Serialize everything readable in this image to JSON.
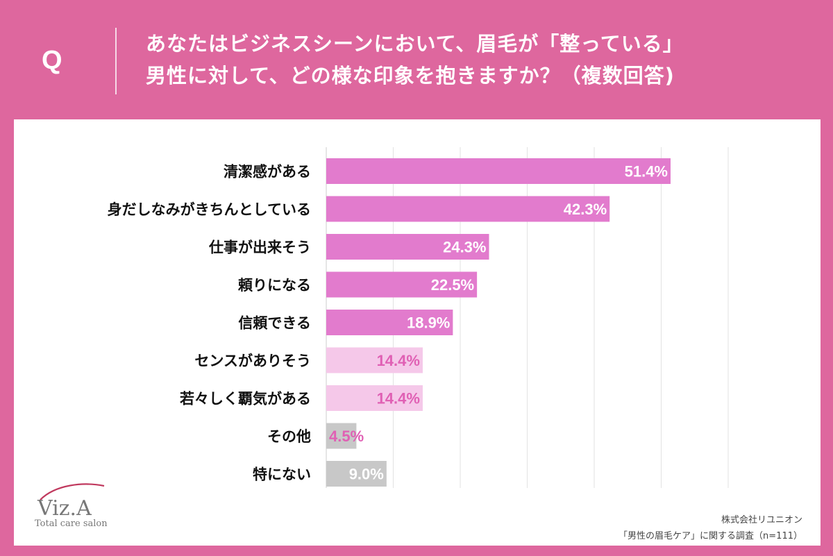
{
  "question": {
    "label": "Q",
    "line1": "あなたはビジネスシーンにおいて、眉毛が「整っている」",
    "line2": "男性に対して、どの様な印象を抱きますか？（複数回答)"
  },
  "chart_data": {
    "type": "bar",
    "orientation": "horizontal",
    "categories": [
      "清潔感がある",
      "身だしなみがきちんとしている",
      "仕事が出来そう",
      "頼りになる",
      "信頼できる",
      "センスがありそう",
      "若々しく覇気がある",
      "その他",
      "特にない"
    ],
    "values": [
      51.4,
      42.3,
      24.3,
      22.5,
      18.9,
      14.4,
      14.4,
      4.5,
      9.0
    ],
    "value_labels": [
      "51.4%",
      "42.3%",
      "24.3%",
      "22.5%",
      "18.9%",
      "14.4%",
      "14.4%",
      "4.5%",
      "9.0%"
    ],
    "xlim": [
      0,
      60
    ],
    "grid": true,
    "bar_colors": [
      "#e27bcd",
      "#e27bcd",
      "#e27bcd",
      "#e27bcd",
      "#e27bcd",
      "#f5c8e9",
      "#f5c8e9",
      "#c8c8c8",
      "#c8c8c8"
    ],
    "label_colors": [
      "#ffffff",
      "#ffffff",
      "#ffffff",
      "#ffffff",
      "#ffffff",
      "#e060b4",
      "#e060b4",
      "#e060b4",
      "#ffffff"
    ]
  },
  "footer": {
    "company": "株式会社リユニオン",
    "survey": "「男性の眉毛ケア」に関する調査（n=111）"
  },
  "logo": {
    "name": "Viz.A",
    "tagline": "Total care salon"
  },
  "colors": {
    "frame": "#de679e",
    "accent_bar": "#e27bcd",
    "light_bar": "#f5c8e9",
    "gray_bar": "#c8c8c8"
  }
}
